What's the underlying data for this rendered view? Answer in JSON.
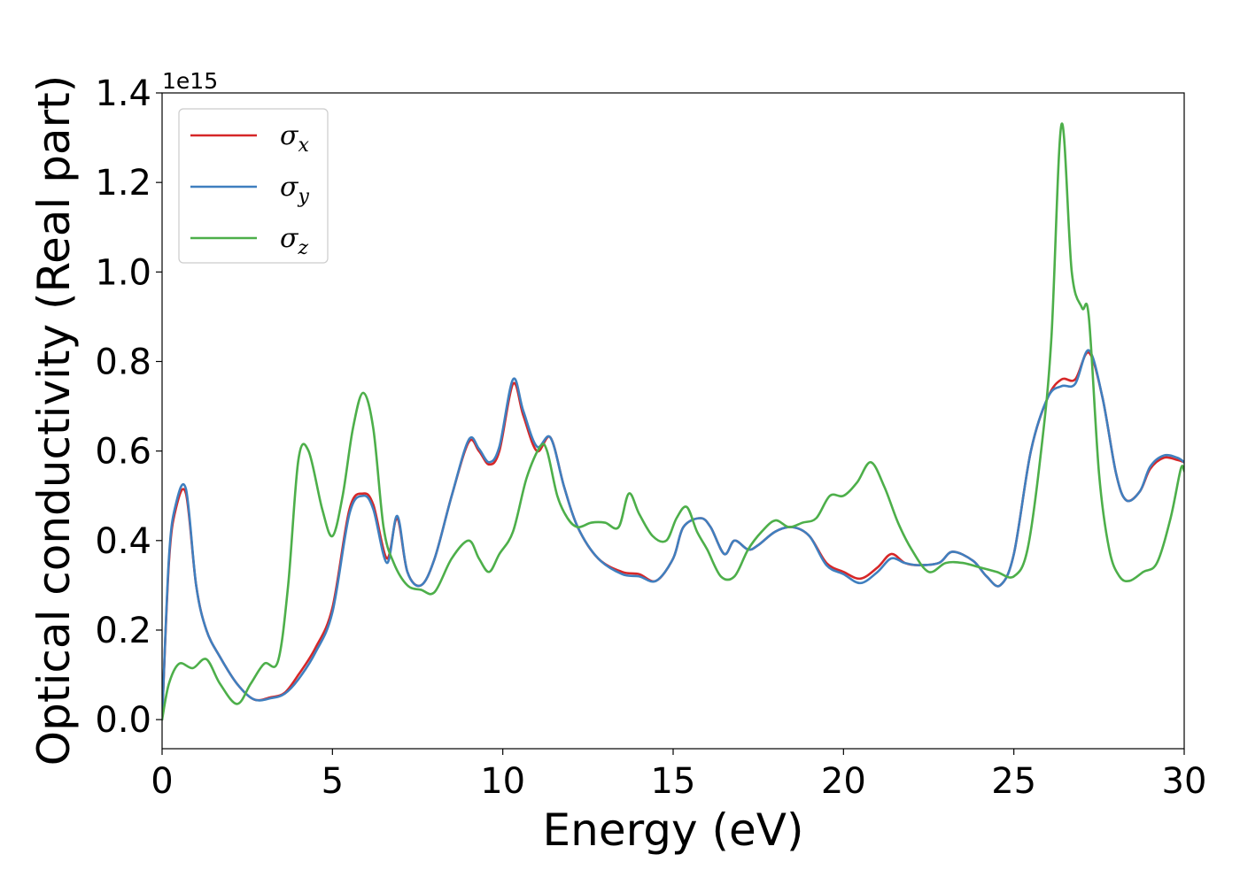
{
  "chart_data": {
    "type": "line",
    "xlabel": "Energy (eV)",
    "ylabel": "Optical conductivity (Real part)",
    "offset_text": "1e15",
    "xlim": [
      0,
      30
    ],
    "ylim": [
      -0.065,
      1.4
    ],
    "xticks": [
      "0",
      "5",
      "10",
      "15",
      "20",
      "25",
      "30"
    ],
    "yticks": [
      "0.0",
      "0.2",
      "0.4",
      "0.6",
      "0.8",
      "1.0",
      "1.2",
      "1.4"
    ],
    "grid": false,
    "legend_position": "top-left",
    "series": [
      {
        "name": "σx",
        "label_base": "σ",
        "label_sub": "x",
        "color": "#d62728",
        "x": [
          0,
          0.2,
          0.4,
          0.7,
          1.0,
          1.3,
          1.7,
          2.2,
          2.7,
          3.2,
          3.6,
          4.0,
          4.5,
          5.0,
          5.5,
          5.9,
          6.2,
          6.6,
          6.9,
          7.2,
          7.6,
          8.0,
          8.5,
          9.0,
          9.3,
          9.6,
          9.9,
          10.3,
          10.6,
          11.0,
          11.4,
          11.8,
          12.2,
          12.8,
          13.5,
          14.0,
          14.5,
          15.0,
          15.3,
          15.8,
          16.1,
          16.5,
          16.8,
          17.2,
          17.5,
          18.0,
          18.5,
          19.0,
          19.5,
          20.0,
          20.5,
          21.0,
          21.4,
          21.8,
          22.2,
          22.8,
          23.2,
          23.8,
          24.2,
          24.6,
          25.0,
          25.5,
          26.0,
          26.4,
          26.8,
          27.2,
          27.6,
          28.0,
          28.3,
          28.7,
          29.0,
          29.4,
          29.8,
          30.0
        ],
        "y": [
          0.0,
          0.35,
          0.47,
          0.505,
          0.3,
          0.2,
          0.14,
          0.08,
          0.045,
          0.05,
          0.06,
          0.1,
          0.16,
          0.25,
          0.47,
          0.505,
          0.48,
          0.36,
          0.45,
          0.33,
          0.3,
          0.36,
          0.5,
          0.62,
          0.6,
          0.57,
          0.6,
          0.75,
          0.68,
          0.6,
          0.63,
          0.52,
          0.43,
          0.36,
          0.33,
          0.325,
          0.31,
          0.36,
          0.43,
          0.45,
          0.43,
          0.37,
          0.4,
          0.38,
          0.39,
          0.42,
          0.43,
          0.41,
          0.35,
          0.33,
          0.315,
          0.34,
          0.37,
          0.35,
          0.345,
          0.35,
          0.375,
          0.355,
          0.32,
          0.3,
          0.37,
          0.6,
          0.72,
          0.76,
          0.76,
          0.82,
          0.72,
          0.55,
          0.49,
          0.51,
          0.56,
          0.585,
          0.58,
          0.575
        ]
      },
      {
        "name": "σy",
        "label_base": "σ",
        "label_sub": "y",
        "color": "#3f7fbf",
        "x": [
          0,
          0.2,
          0.4,
          0.7,
          1.0,
          1.3,
          1.7,
          2.2,
          2.7,
          3.2,
          3.6,
          4.0,
          4.5,
          5.0,
          5.5,
          5.9,
          6.2,
          6.6,
          6.9,
          7.2,
          7.6,
          8.0,
          8.5,
          9.0,
          9.3,
          9.6,
          9.9,
          10.3,
          10.6,
          11.0,
          11.4,
          11.8,
          12.2,
          12.8,
          13.5,
          14.0,
          14.5,
          15.0,
          15.3,
          15.8,
          16.1,
          16.5,
          16.8,
          17.2,
          17.5,
          18.0,
          18.5,
          19.0,
          19.5,
          20.0,
          20.5,
          21.0,
          21.4,
          21.8,
          22.2,
          22.8,
          23.2,
          23.8,
          24.2,
          24.6,
          25.0,
          25.5,
          26.0,
          26.4,
          26.8,
          27.2,
          27.6,
          28.0,
          28.3,
          28.7,
          29.0,
          29.4,
          29.8,
          30.0
        ],
        "y": [
          0.0,
          0.36,
          0.48,
          0.515,
          0.3,
          0.2,
          0.14,
          0.08,
          0.045,
          0.048,
          0.058,
          0.09,
          0.15,
          0.24,
          0.46,
          0.5,
          0.47,
          0.35,
          0.455,
          0.33,
          0.3,
          0.36,
          0.5,
          0.625,
          0.605,
          0.575,
          0.61,
          0.76,
          0.69,
          0.61,
          0.63,
          0.52,
          0.43,
          0.36,
          0.325,
          0.32,
          0.31,
          0.36,
          0.43,
          0.45,
          0.43,
          0.37,
          0.4,
          0.38,
          0.39,
          0.42,
          0.43,
          0.41,
          0.345,
          0.325,
          0.305,
          0.33,
          0.36,
          0.35,
          0.345,
          0.35,
          0.375,
          0.355,
          0.32,
          0.3,
          0.37,
          0.6,
          0.72,
          0.745,
          0.75,
          0.825,
          0.72,
          0.55,
          0.49,
          0.51,
          0.565,
          0.59,
          0.585,
          0.575
        ]
      },
      {
        "name": "σz",
        "label_base": "σ",
        "label_sub": "z",
        "color": "#4daf4a",
        "x": [
          0,
          0.2,
          0.5,
          0.9,
          1.3,
          1.7,
          2.2,
          2.6,
          3.0,
          3.4,
          3.7,
          4.0,
          4.3,
          4.7,
          5.0,
          5.3,
          5.6,
          5.9,
          6.2,
          6.5,
          6.8,
          7.2,
          7.6,
          8.0,
          8.5,
          9.0,
          9.3,
          9.6,
          9.9,
          10.3,
          10.7,
          11.1,
          11.3,
          11.6,
          11.9,
          12.2,
          12.6,
          13.0,
          13.4,
          13.7,
          14.0,
          14.4,
          14.8,
          15.1,
          15.4,
          15.7,
          16.0,
          16.4,
          16.8,
          17.2,
          17.6,
          18.0,
          18.4,
          18.8,
          19.2,
          19.6,
          20.0,
          20.4,
          20.8,
          21.2,
          21.6,
          22.0,
          22.5,
          23.0,
          23.5,
          24.0,
          24.5,
          25.0,
          25.4,
          25.8,
          26.1,
          26.4,
          26.7,
          27.0,
          27.2,
          27.5,
          27.8,
          28.1,
          28.4,
          28.8,
          29.2,
          29.6,
          29.9,
          30.0
        ],
        "y": [
          0.0,
          0.08,
          0.125,
          0.115,
          0.135,
          0.08,
          0.035,
          0.08,
          0.125,
          0.13,
          0.3,
          0.58,
          0.6,
          0.47,
          0.41,
          0.5,
          0.65,
          0.73,
          0.65,
          0.43,
          0.35,
          0.3,
          0.29,
          0.285,
          0.36,
          0.4,
          0.36,
          0.33,
          0.37,
          0.42,
          0.54,
          0.61,
          0.6,
          0.5,
          0.45,
          0.43,
          0.44,
          0.44,
          0.43,
          0.505,
          0.46,
          0.41,
          0.4,
          0.45,
          0.475,
          0.42,
          0.38,
          0.32,
          0.32,
          0.38,
          0.42,
          0.445,
          0.43,
          0.44,
          0.45,
          0.5,
          0.5,
          0.53,
          0.575,
          0.52,
          0.44,
          0.38,
          0.33,
          0.35,
          0.35,
          0.34,
          0.33,
          0.32,
          0.38,
          0.6,
          0.85,
          1.33,
          1.0,
          0.92,
          0.9,
          0.55,
          0.38,
          0.32,
          0.31,
          0.33,
          0.35,
          0.45,
          0.56,
          0.555
        ]
      }
    ]
  }
}
